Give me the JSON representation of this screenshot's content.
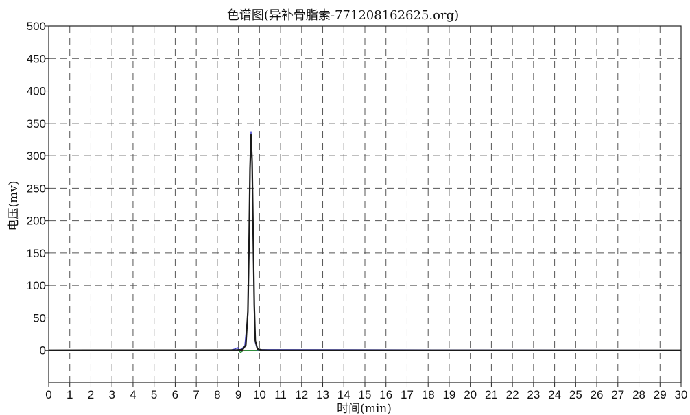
{
  "chart_data": {
    "type": "line",
    "title": "色谱图(异补骨脂素-771208162625.org)",
    "xlabel": "时间(min)",
    "ylabel": "电压(mv)",
    "xlim": [
      0,
      30
    ],
    "ylim": [
      -50,
      500
    ],
    "x_ticks": [
      0,
      1,
      2,
      3,
      4,
      5,
      6,
      7,
      8,
      9,
      10,
      11,
      12,
      13,
      14,
      15,
      16,
      17,
      18,
      19,
      20,
      21,
      22,
      23,
      24,
      25,
      26,
      27,
      28,
      29,
      30
    ],
    "y_ticks": [
      0,
      50,
      100,
      150,
      200,
      250,
      300,
      350,
      400,
      450,
      500
    ],
    "grid": true,
    "series": [
      {
        "color": "#1a1a1a",
        "x": [
          0,
          8.5,
          8.9,
          9.2,
          9.35,
          9.45,
          9.5,
          9.55,
          9.6,
          9.65,
          9.7,
          9.75,
          9.8,
          9.9,
          10.1,
          10.5,
          30
        ],
        "y": [
          0,
          0.2,
          0.5,
          1,
          8,
          60,
          160,
          280,
          332,
          290,
          180,
          70,
          15,
          2,
          0.5,
          0,
          0
        ]
      },
      {
        "color": "#3a3ac8",
        "x": [
          0,
          8.6,
          8.85,
          8.95,
          9.05,
          9.3,
          9.45,
          9.5,
          9.55,
          9.6,
          9.65,
          9.7,
          9.75,
          9.8,
          9.9,
          30
        ],
        "y": [
          0,
          0,
          2,
          4,
          0,
          6,
          55,
          150,
          275,
          337,
          285,
          175,
          65,
          12,
          1,
          0
        ]
      },
      {
        "color": "#2e8b3a",
        "x": [
          0,
          9.0,
          9.1,
          9.2,
          9.3,
          30
        ],
        "y": [
          0,
          0,
          -3,
          -1,
          0,
          0
        ]
      },
      {
        "color": "#cc3333",
        "x": [
          0,
          10.0,
          10.3,
          10.7,
          11.0,
          30
        ],
        "y": [
          0,
          0,
          0.6,
          0.4,
          0,
          0
        ]
      }
    ]
  }
}
